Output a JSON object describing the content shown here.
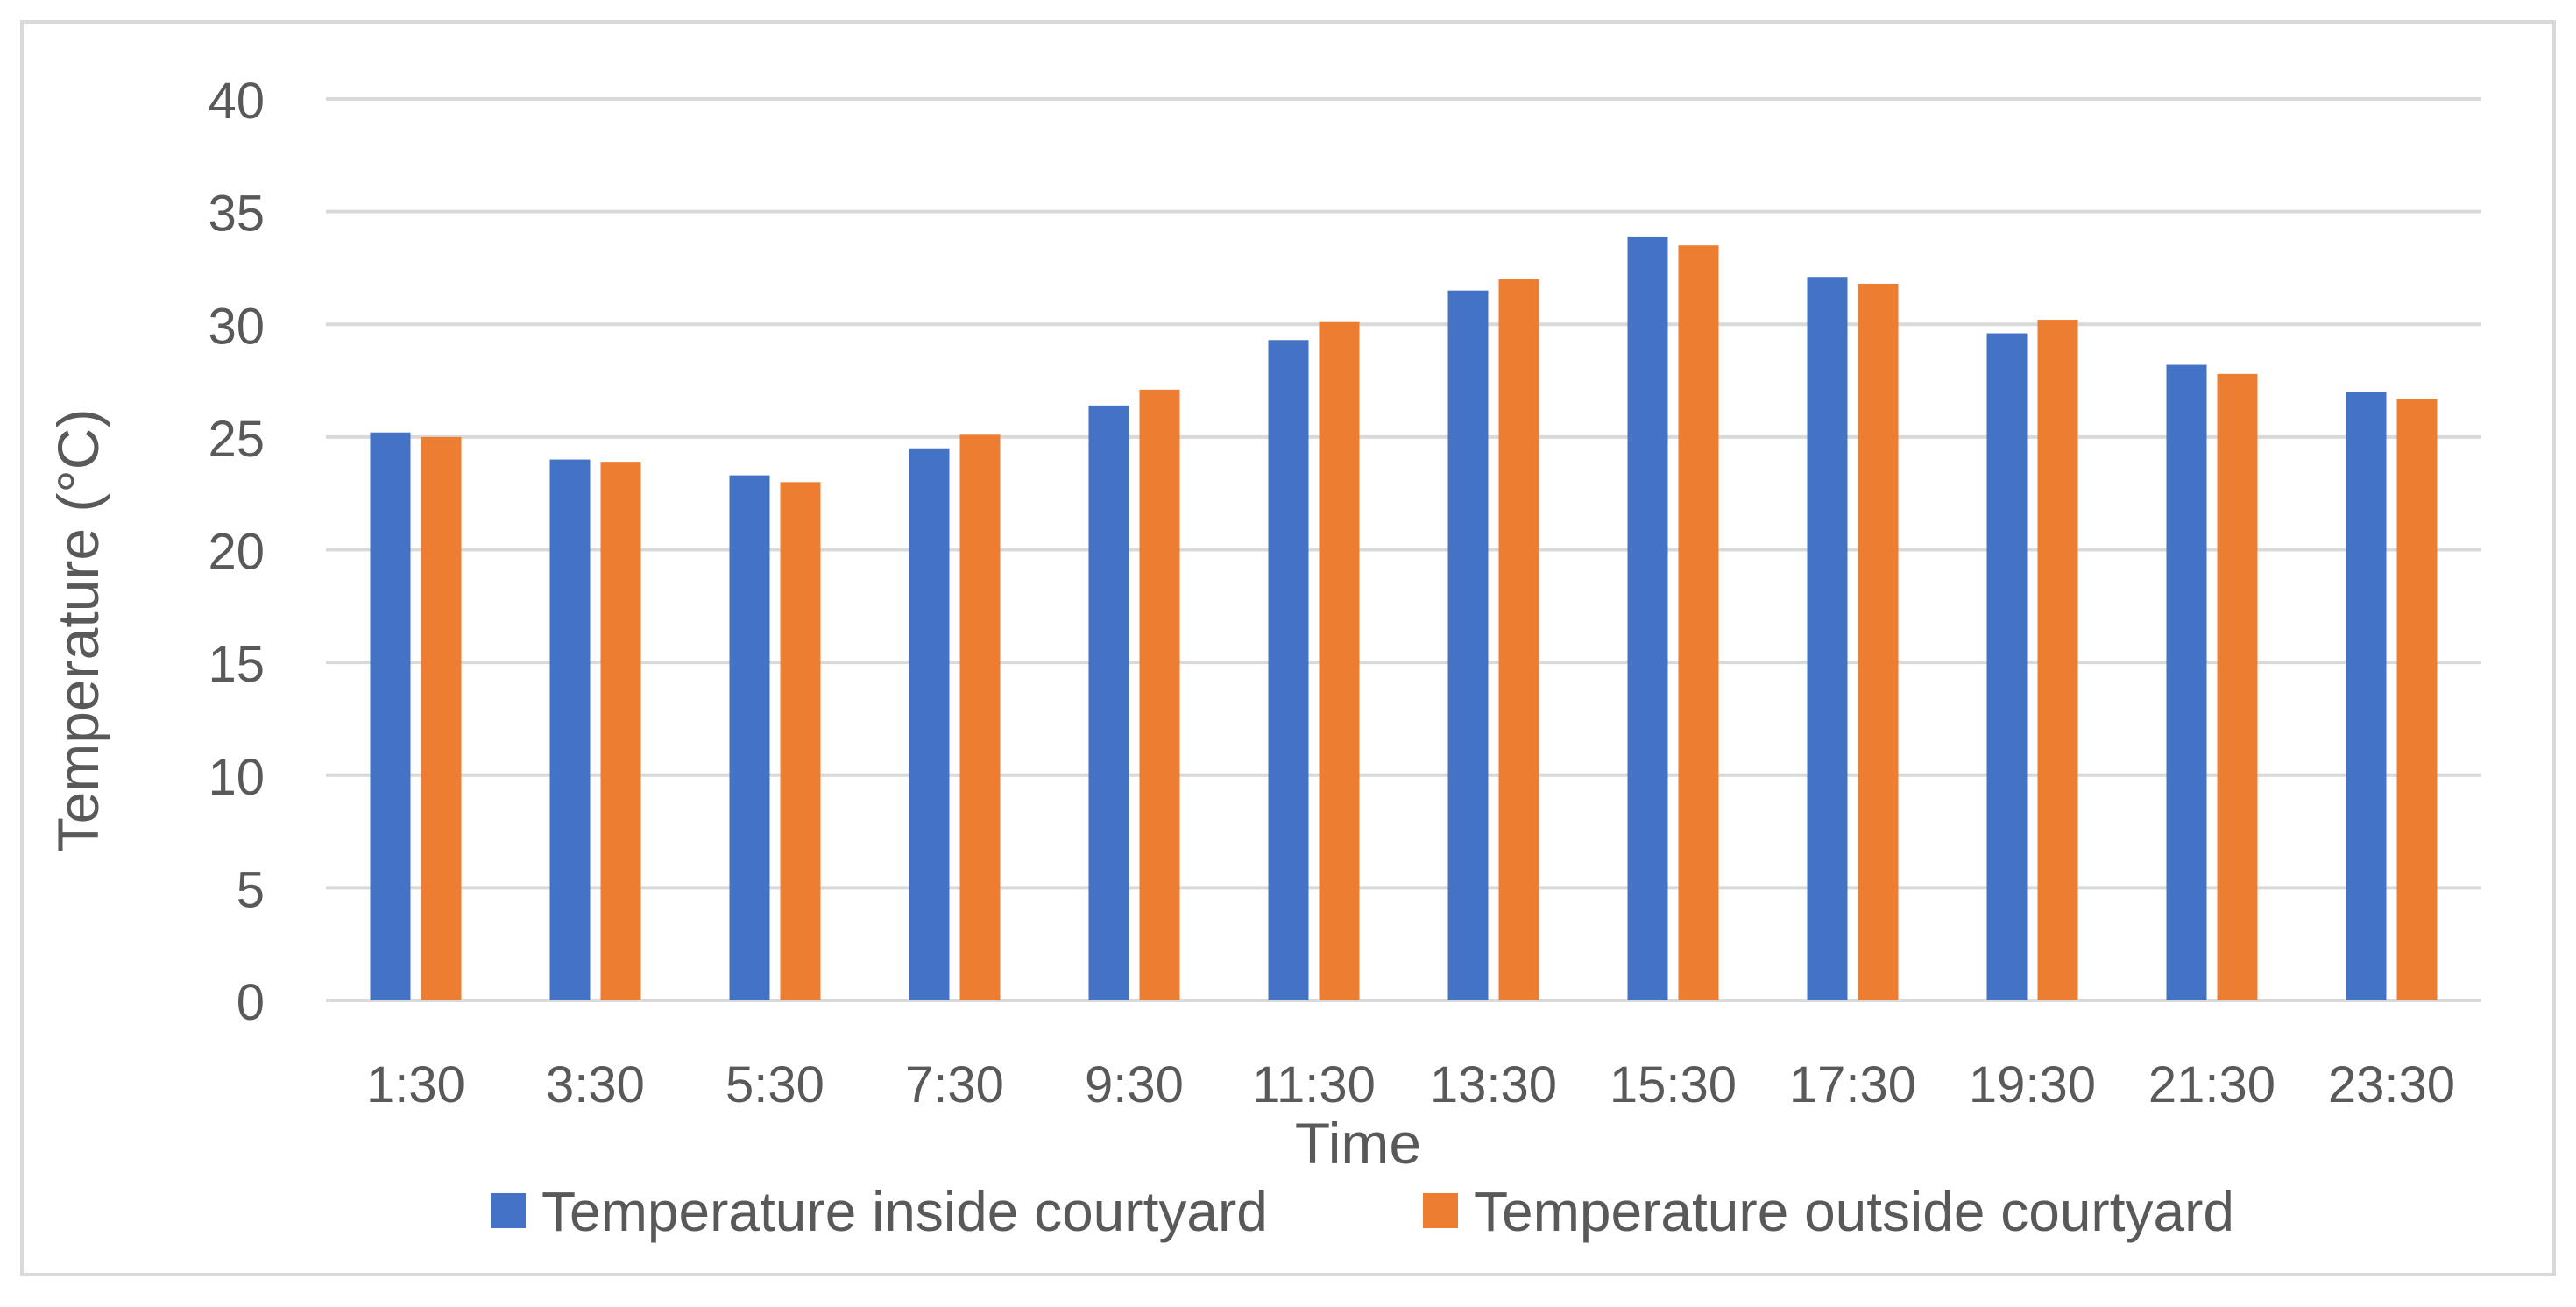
{
  "chart_data": {
    "type": "bar",
    "title": "",
    "xlabel": "Time",
    "ylabel": "Temperature (°C)",
    "categories": [
      "1:30",
      "3:30",
      "5:30",
      "7:30",
      "9:30",
      "11:30",
      "13:30",
      "15:30",
      "17:30",
      "19:30",
      "21:30",
      "23:30"
    ],
    "series": [
      {
        "name": "Temperature inside courtyard",
        "color": "#4472C4",
        "values": [
          25.2,
          24.0,
          23.3,
          24.5,
          26.4,
          29.3,
          31.5,
          33.9,
          32.1,
          29.6,
          28.2,
          27.0
        ]
      },
      {
        "name": "Temperature outside courtyard",
        "color": "#ED7D31",
        "values": [
          25.0,
          23.9,
          23.0,
          25.1,
          27.1,
          30.1,
          32.0,
          33.5,
          31.8,
          30.2,
          27.8,
          26.7
        ]
      }
    ],
    "ylim": [
      0,
      40
    ],
    "yticks": [
      "0",
      "5",
      "10",
      "15",
      "20",
      "25",
      "30",
      "35",
      "40"
    ],
    "grid": true,
    "legend": "bottom",
    "colors": {
      "grid": "#D9D9D9",
      "text": "#595959",
      "frame": "#D9D9D9"
    }
  }
}
